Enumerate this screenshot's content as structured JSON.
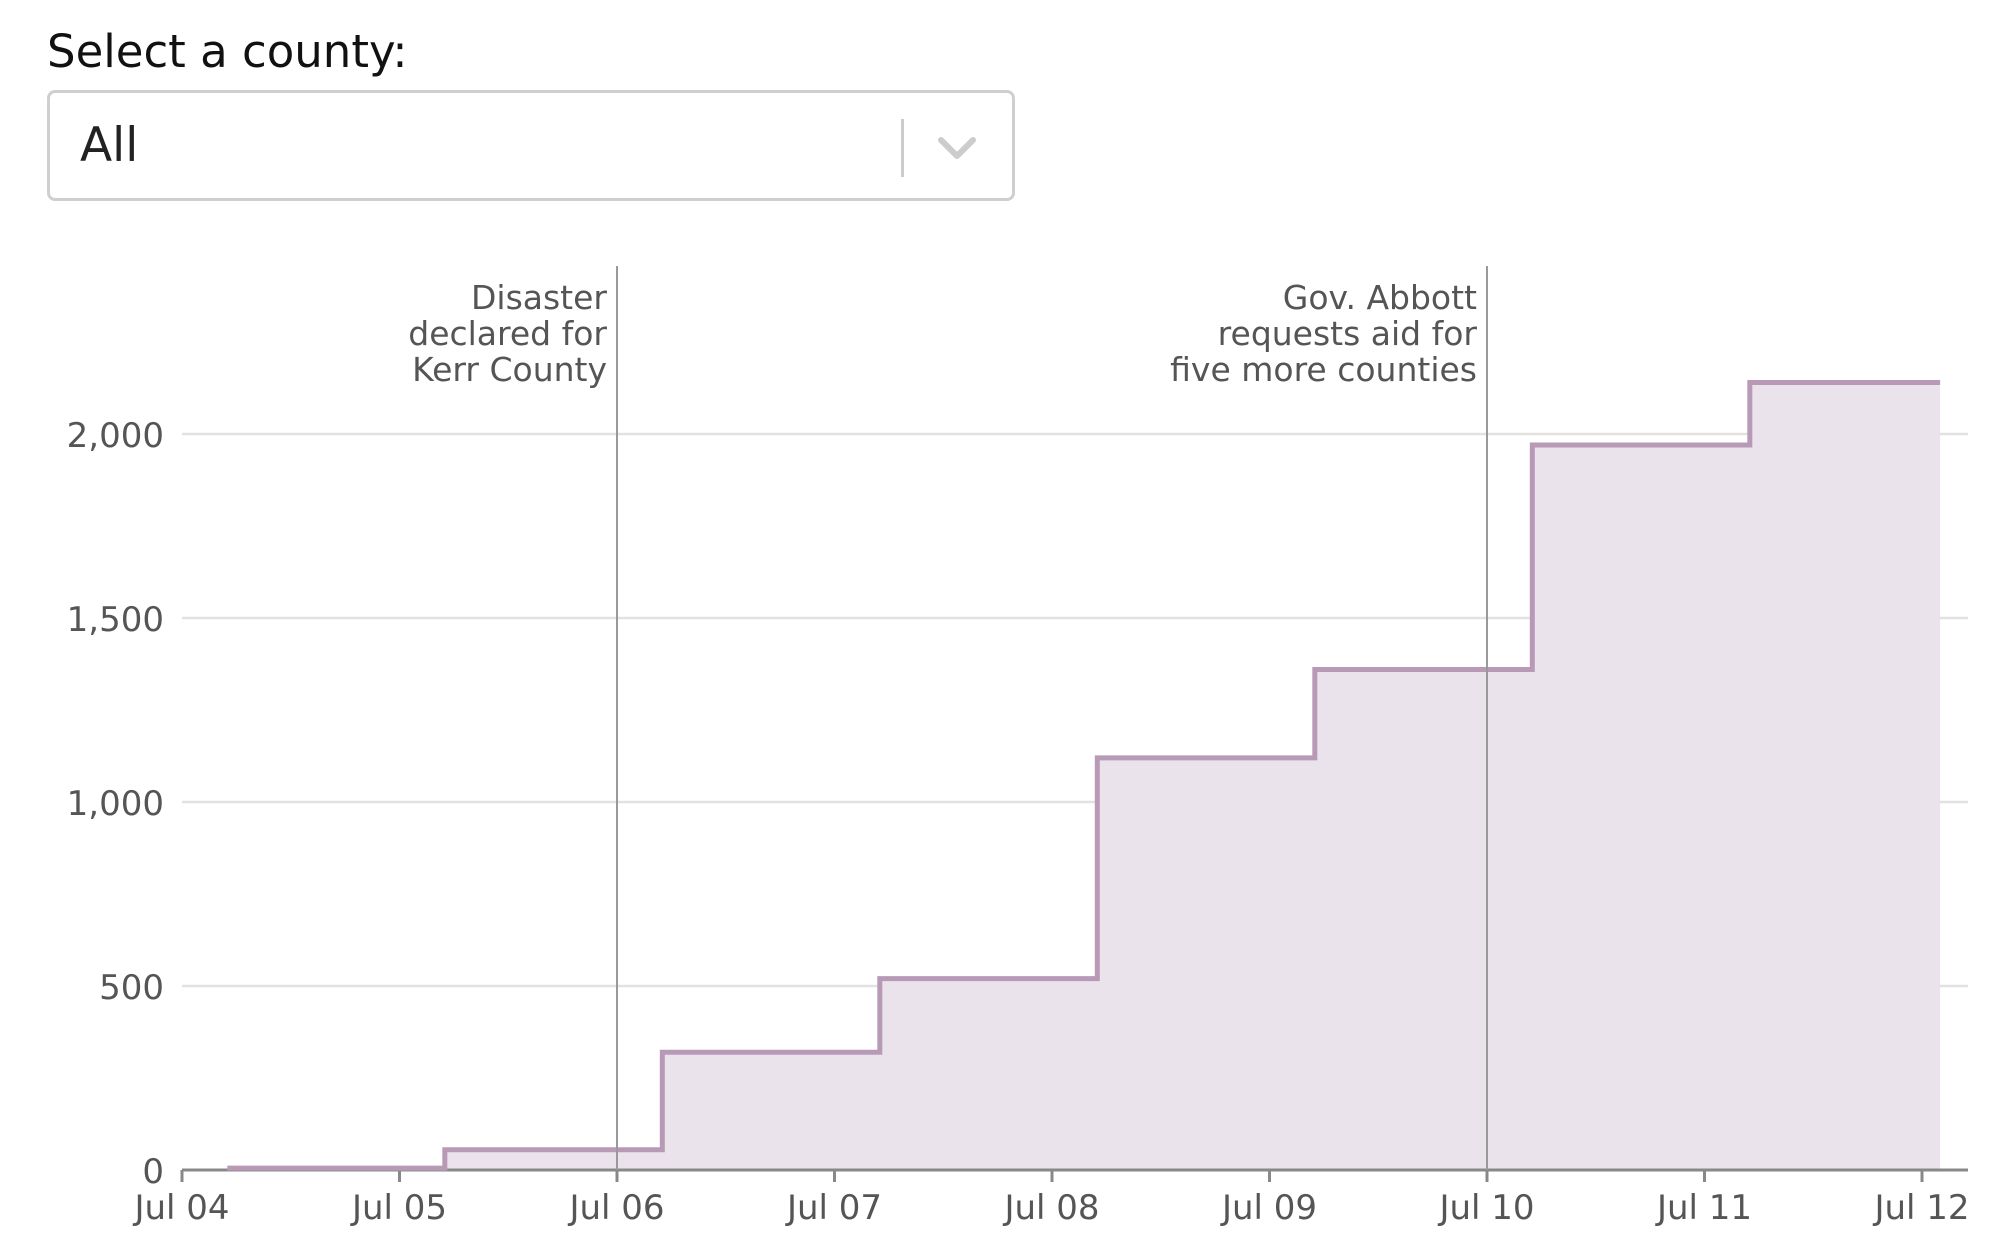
{
  "filter": {
    "label": "Select a county:",
    "selected": "All",
    "chevron_icon": "chevron-down-icon"
  },
  "colors": {
    "series": "#b89ab7",
    "fill": "#ebe3eb",
    "grid": "#e2e2e2",
    "annotation_line": "#999999",
    "axis": "#888888"
  },
  "chart_data": {
    "type": "area",
    "step": true,
    "x_type": "date",
    "x_tick_labels": [
      "Jul 04",
      "Jul 05",
      "Jul 06",
      "Jul 07",
      "Jul 08",
      "Jul 09",
      "Jul 10",
      "Jul 11",
      "Jul 12"
    ],
    "x_domain": [
      "2025-07-04T00:00",
      "2025-07-12T02:00"
    ],
    "y_ticks": [
      0,
      500,
      1000,
      1500,
      2000
    ],
    "y_tick_labels": [
      "0",
      "500",
      "1,000",
      "1,500",
      "2,000"
    ],
    "ylim": [
      0,
      2140
    ],
    "grid": "horizontal",
    "title": "",
    "xlabel": "",
    "ylabel": "",
    "series": [
      {
        "x": [
          "2025-07-04T05:00",
          "2025-07-05T05:00",
          "2025-07-06T05:00",
          "2025-07-07T05:00",
          "2025-07-08T05:00",
          "2025-07-09T05:00",
          "2025-07-10T05:00",
          "2025-07-11T05:00",
          "2025-07-12T02:00"
        ],
        "values": [
          5,
          55,
          320,
          520,
          1120,
          1360,
          1970,
          2140,
          2140
        ]
      }
    ],
    "annotations": [
      {
        "x": "2025-07-06T00:00",
        "lines": [
          "Disaster",
          "declared for",
          "Kerr County"
        ]
      },
      {
        "x": "2025-07-10T00:00",
        "lines": [
          "Gov. Abbott",
          "requests aid for",
          "five more counties"
        ]
      }
    ]
  }
}
